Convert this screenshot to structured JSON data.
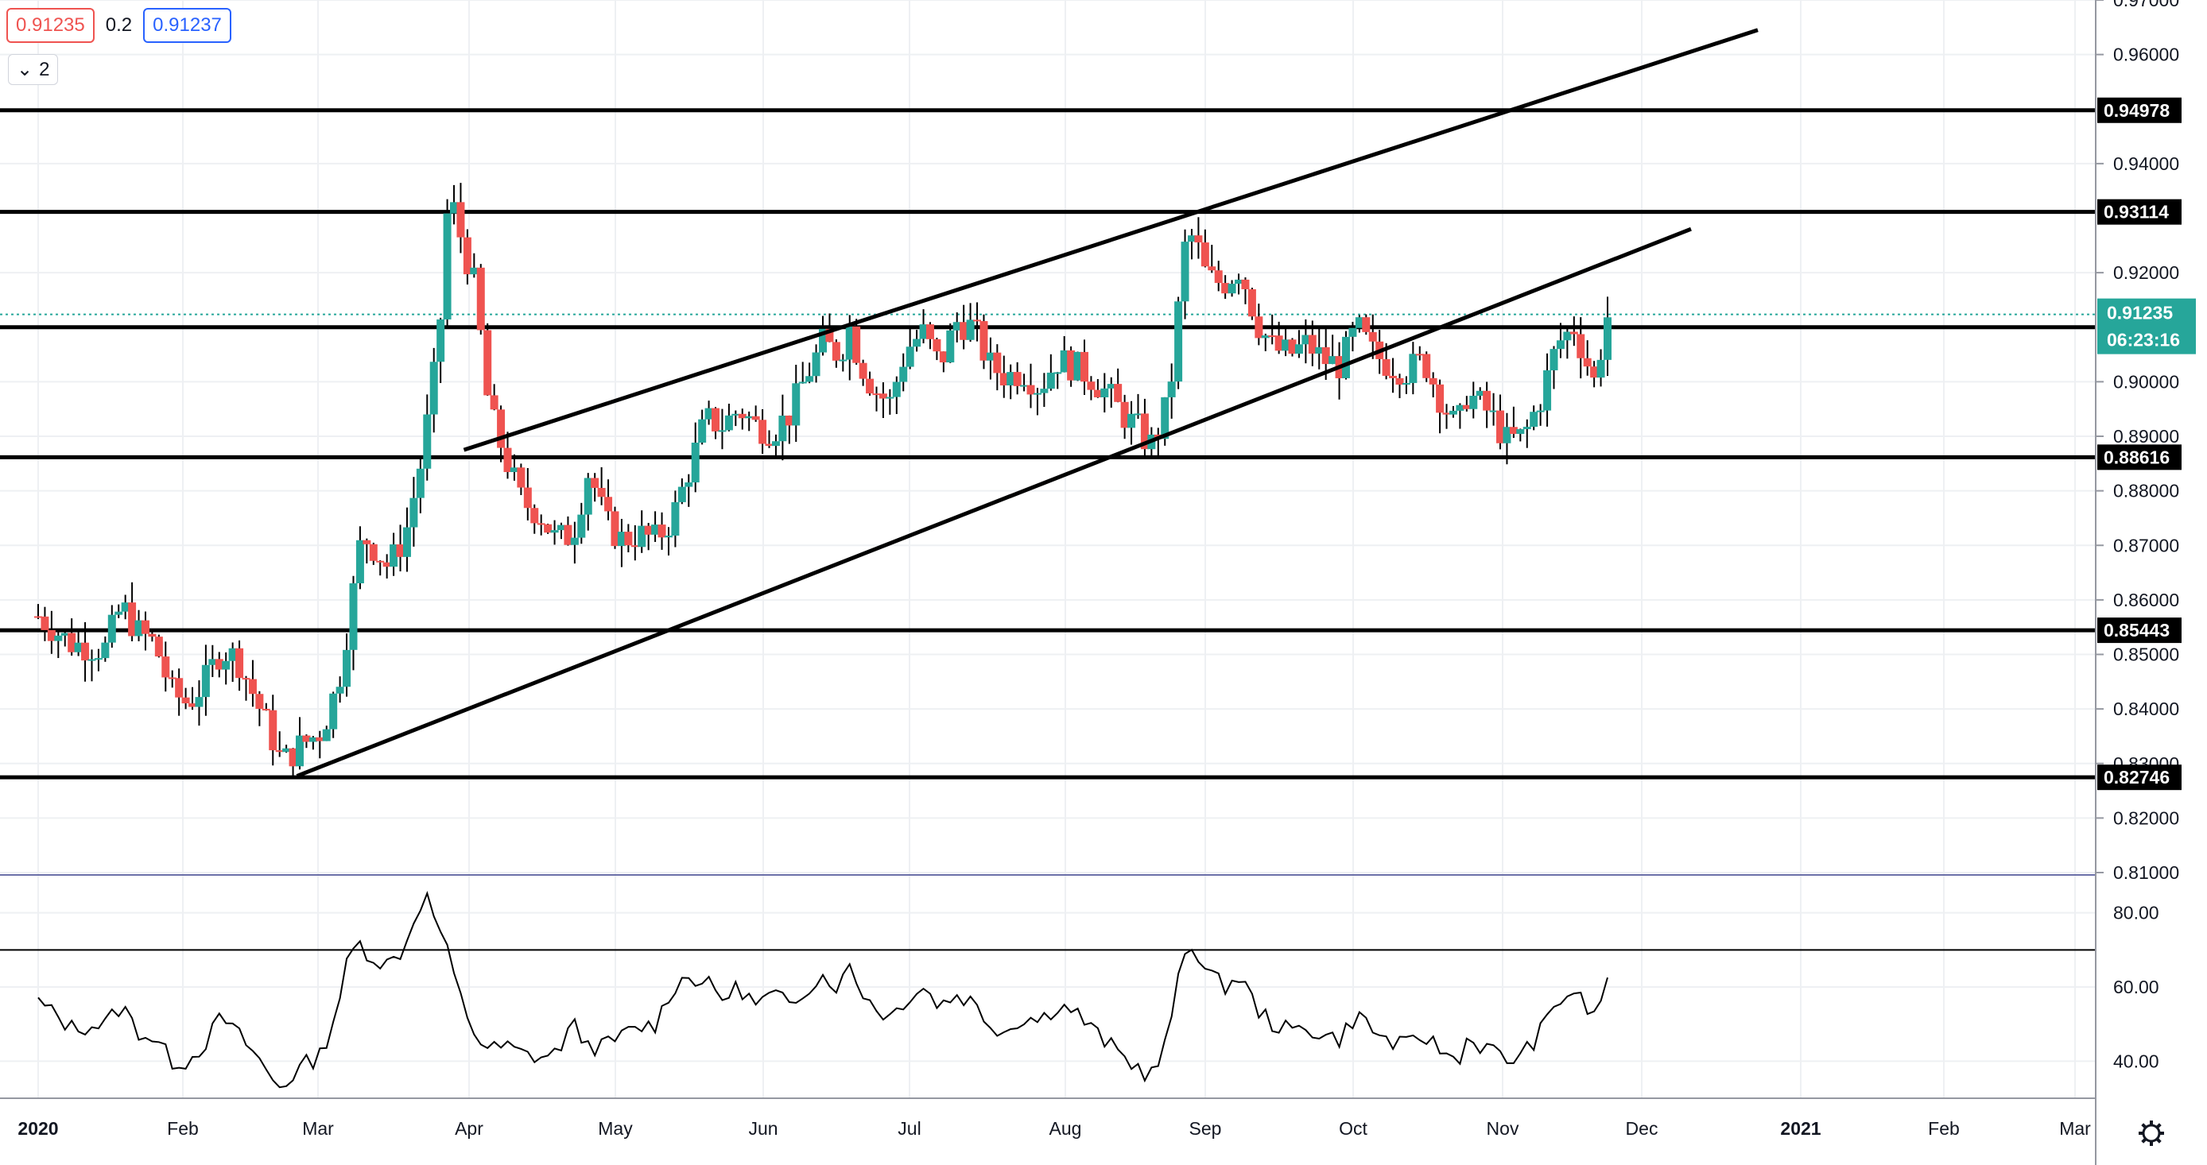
{
  "header": {
    "bid": "0.91235",
    "spread": "0.2",
    "ask": "0.91237",
    "collapse_icon": "chevron-down-icon",
    "indicator_count": "2"
  },
  "price_axis": {
    "ticks": [
      "0.97000",
      "0.96000",
      "0.94000",
      "0.92000",
      "0.90000",
      "0.89000",
      "0.88000",
      "0.87000",
      "0.86000",
      "0.85000",
      "0.84000",
      "0.83000",
      "0.82000",
      "0.81000"
    ]
  },
  "rsi_axis": {
    "ticks": [
      "80.00",
      "60.00",
      "40.00"
    ]
  },
  "time_axis": {
    "labels": [
      "2020",
      "Feb",
      "Mar",
      "Apr",
      "May",
      "Jun",
      "Jul",
      "Aug",
      "Sep",
      "Oct",
      "Nov",
      "Dec",
      "2021",
      "Feb",
      "Mar"
    ]
  },
  "levels": [
    {
      "value": 0.94978,
      "label": "0.94978"
    },
    {
      "value": 0.93114,
      "label": "0.93114"
    },
    {
      "value": 0.91,
      "label": ""
    },
    {
      "value": 0.88616,
      "label": "0.88616"
    },
    {
      "value": 0.85443,
      "label": "0.85443"
    },
    {
      "value": 0.82746,
      "label": "0.82746"
    }
  ],
  "current_price": {
    "value": 0.91235,
    "label": "0.91235",
    "countdown": "06:23:16",
    "color": "#26a69a"
  },
  "colors": {
    "up": "#26a69a",
    "down": "#ef5350",
    "line": "#000000",
    "grid": "#eef0f3",
    "text": "#131722"
  },
  "settings_icon": "gear-icon",
  "chart_data": {
    "type": "candlestick",
    "price_range": [
      0.81,
      0.97
    ],
    "rsi_range": [
      30,
      90
    ],
    "rsi_levels": [
      70,
      30
    ],
    "channel_lines": [
      {
        "from": {
          "week": 7.75,
          "price": 0.8277
        },
        "to": {
          "week": 49.5,
          "price": 0.928
        }
      },
      {
        "from": {
          "week": 12.75,
          "price": 0.8875
        },
        "to": {
          "week": 51.5,
          "price": 0.9645
        }
      }
    ],
    "anchors": [
      [
        0,
        0.857
      ],
      [
        1,
        0.852
      ],
      [
        2,
        0.851
      ],
      [
        2.5,
        0.859
      ],
      [
        3,
        0.854
      ],
      [
        3.5,
        0.852
      ],
      [
        4,
        0.843
      ],
      [
        4.5,
        0.841
      ],
      [
        5,
        0.845
      ],
      [
        5.5,
        0.851
      ],
      [
        6,
        0.849
      ],
      [
        6.5,
        0.842
      ],
      [
        7,
        0.835
      ],
      [
        7.3,
        0.83
      ],
      [
        7.8,
        0.833
      ],
      [
        8.5,
        0.836
      ],
      [
        9,
        0.845
      ],
      [
        9.3,
        0.856
      ],
      [
        9.7,
        0.872
      ],
      [
        10,
        0.87
      ],
      [
        10.5,
        0.866
      ],
      [
        11,
        0.872
      ],
      [
        11.5,
        0.886
      ],
      [
        12,
        0.907
      ],
      [
        12.3,
        0.935
      ],
      [
        12.6,
        0.928
      ],
      [
        13.1,
        0.917
      ],
      [
        13.5,
        0.895
      ],
      [
        14,
        0.886
      ],
      [
        14.5,
        0.878
      ],
      [
        15,
        0.876
      ],
      [
        15.5,
        0.871
      ],
      [
        16,
        0.872
      ],
      [
        16.5,
        0.884
      ],
      [
        17,
        0.874
      ],
      [
        17.5,
        0.871
      ],
      [
        18,
        0.872
      ],
      [
        18.5,
        0.871
      ],
      [
        19,
        0.875
      ],
      [
        19.5,
        0.884
      ],
      [
        20,
        0.893
      ],
      [
        20.5,
        0.892
      ],
      [
        21,
        0.895
      ],
      [
        21.5,
        0.892
      ],
      [
        22,
        0.891
      ],
      [
        22.5,
        0.894
      ],
      [
        23,
        0.901
      ],
      [
        23.5,
        0.907
      ],
      [
        24,
        0.905
      ],
      [
        24.3,
        0.91
      ],
      [
        24.6,
        0.904
      ],
      [
        25,
        0.899
      ],
      [
        25.5,
        0.896
      ],
      [
        26,
        0.906
      ],
      [
        26.5,
        0.909
      ],
      [
        27,
        0.903
      ],
      [
        27.5,
        0.911
      ],
      [
        28,
        0.91
      ],
      [
        28.5,
        0.903
      ],
      [
        29,
        0.901
      ],
      [
        29.5,
        0.902
      ],
      [
        30,
        0.899
      ],
      [
        30.5,
        0.904
      ],
      [
        31,
        0.903
      ],
      [
        31.5,
        0.901
      ],
      [
        32,
        0.898
      ],
      [
        32.5,
        0.894
      ],
      [
        33,
        0.891
      ],
      [
        33.3,
        0.888
      ],
      [
        33.7,
        0.893
      ],
      [
        34,
        0.903
      ],
      [
        34.3,
        0.924
      ],
      [
        34.6,
        0.927
      ],
      [
        35,
        0.919
      ],
      [
        35.5,
        0.918
      ],
      [
        36,
        0.921
      ],
      [
        36.5,
        0.911
      ],
      [
        37,
        0.906
      ],
      [
        37.5,
        0.905
      ],
      [
        38,
        0.907
      ],
      [
        38.5,
        0.904
      ],
      [
        39,
        0.903
      ],
      [
        39.5,
        0.91
      ],
      [
        40,
        0.905
      ],
      [
        40.5,
        0.903
      ],
      [
        41,
        0.902
      ],
      [
        41.5,
        0.904
      ],
      [
        42,
        0.897
      ],
      [
        42.5,
        0.891
      ],
      [
        42.8,
        0.898
      ],
      [
        43.5,
        0.894
      ],
      [
        44,
        0.889
      ],
      [
        44.5,
        0.89
      ],
      [
        45,
        0.897
      ],
      [
        45.5,
        0.907
      ],
      [
        46,
        0.91
      ],
      [
        46.3,
        0.905
      ],
      [
        46.6,
        0.9
      ],
      [
        47,
        0.912
      ]
    ],
    "rsi_anchors": [
      [
        0,
        56
      ],
      [
        1,
        49
      ],
      [
        2,
        50
      ],
      [
        2.5,
        55
      ],
      [
        3,
        48
      ],
      [
        3.5,
        46
      ],
      [
        4,
        40
      ],
      [
        4.5,
        40
      ],
      [
        5,
        45
      ],
      [
        5.5,
        52
      ],
      [
        6,
        47
      ],
      [
        6.5,
        42
      ],
      [
        7,
        35
      ],
      [
        7.3,
        33
      ],
      [
        7.8,
        38
      ],
      [
        8.5,
        42
      ],
      [
        9,
        56
      ],
      [
        9.3,
        68
      ],
      [
        9.6,
        72
      ],
      [
        10,
        68
      ],
      [
        10.5,
        66
      ],
      [
        11,
        71
      ],
      [
        11.3,
        80
      ],
      [
        11.6,
        85
      ],
      [
        12,
        76
      ],
      [
        12.3,
        68
      ],
      [
        12.6,
        58
      ],
      [
        13.1,
        47
      ],
      [
        13.5,
        43
      ],
      [
        14,
        44
      ],
      [
        14.5,
        42
      ],
      [
        15,
        41
      ],
      [
        15.5,
        42
      ],
      [
        16,
        50
      ],
      [
        16.5,
        44
      ],
      [
        17,
        44
      ],
      [
        17.5,
        47
      ],
      [
        18,
        49
      ],
      [
        18.5,
        50
      ],
      [
        19,
        60
      ],
      [
        19.5,
        63
      ],
      [
        20,
        61
      ],
      [
        20.5,
        57
      ],
      [
        21,
        60
      ],
      [
        21.5,
        55
      ],
      [
        22,
        58
      ],
      [
        22.5,
        55
      ],
      [
        23,
        60
      ],
      [
        23.5,
        63
      ],
      [
        24,
        60
      ],
      [
        24.3,
        66
      ],
      [
        24.6,
        60
      ],
      [
        25,
        55
      ],
      [
        25.5,
        52
      ],
      [
        26,
        57
      ],
      [
        26.5,
        60
      ],
      [
        27,
        55
      ],
      [
        27.5,
        58
      ],
      [
        28,
        56
      ],
      [
        28.5,
        50
      ],
      [
        29,
        48
      ],
      [
        29.5,
        52
      ],
      [
        30,
        51
      ],
      [
        30.5,
        55
      ],
      [
        31,
        54
      ],
      [
        31.5,
        49
      ],
      [
        32,
        45
      ],
      [
        32.5,
        41
      ],
      [
        33,
        38
      ],
      [
        33.3,
        36
      ],
      [
        33.7,
        42
      ],
      [
        34,
        55
      ],
      [
        34.3,
        68
      ],
      [
        34.6,
        72
      ],
      [
        35,
        64
      ],
      [
        35.5,
        60
      ],
      [
        36,
        63
      ],
      [
        36.5,
        54
      ],
      [
        37,
        50
      ],
      [
        37.5,
        48
      ],
      [
        38,
        49
      ],
      [
        38.5,
        47
      ],
      [
        39,
        46
      ],
      [
        39.5,
        53
      ],
      [
        40,
        48
      ],
      [
        40.5,
        45
      ],
      [
        41,
        44
      ],
      [
        41.5,
        47
      ],
      [
        42,
        43
      ],
      [
        42.5,
        40
      ],
      [
        42.8,
        46
      ],
      [
        43.5,
        43
      ],
      [
        44,
        40
      ],
      [
        44.5,
        42
      ],
      [
        45,
        48
      ],
      [
        45.5,
        56
      ],
      [
        46,
        59
      ],
      [
        46.3,
        55
      ],
      [
        46.6,
        52
      ],
      [
        47,
        62
      ]
    ]
  }
}
